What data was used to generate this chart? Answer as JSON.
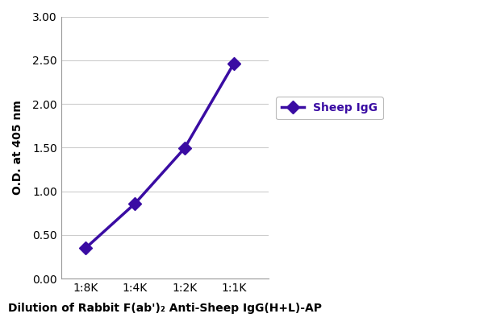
{
  "x_labels": [
    "1:8K",
    "1:4K",
    "1:2K",
    "1:1K"
  ],
  "x_values": [
    1,
    2,
    3,
    4
  ],
  "y_values": [
    0.35,
    0.86,
    1.49,
    2.46
  ],
  "line_color": "#3a0ca3",
  "marker_style": "D",
  "marker_size": 8,
  "line_width": 2.5,
  "ylabel": "O.D. at 405 nm",
  "xlabel": "Dilution of Rabbit F(ab')₂ Anti-Sheep IgG(H+L)-AP",
  "ylim": [
    0.0,
    3.0
  ],
  "yticks": [
    0.0,
    0.5,
    1.0,
    1.5,
    2.0,
    2.5,
    3.0
  ],
  "legend_label": "Sheep IgG",
  "legend_color": "#3a0ca3",
  "background_color": "#ffffff",
  "grid_color": "#cccccc",
  "axis_fontsize": 10,
  "tick_fontsize": 10,
  "legend_fontsize": 10
}
